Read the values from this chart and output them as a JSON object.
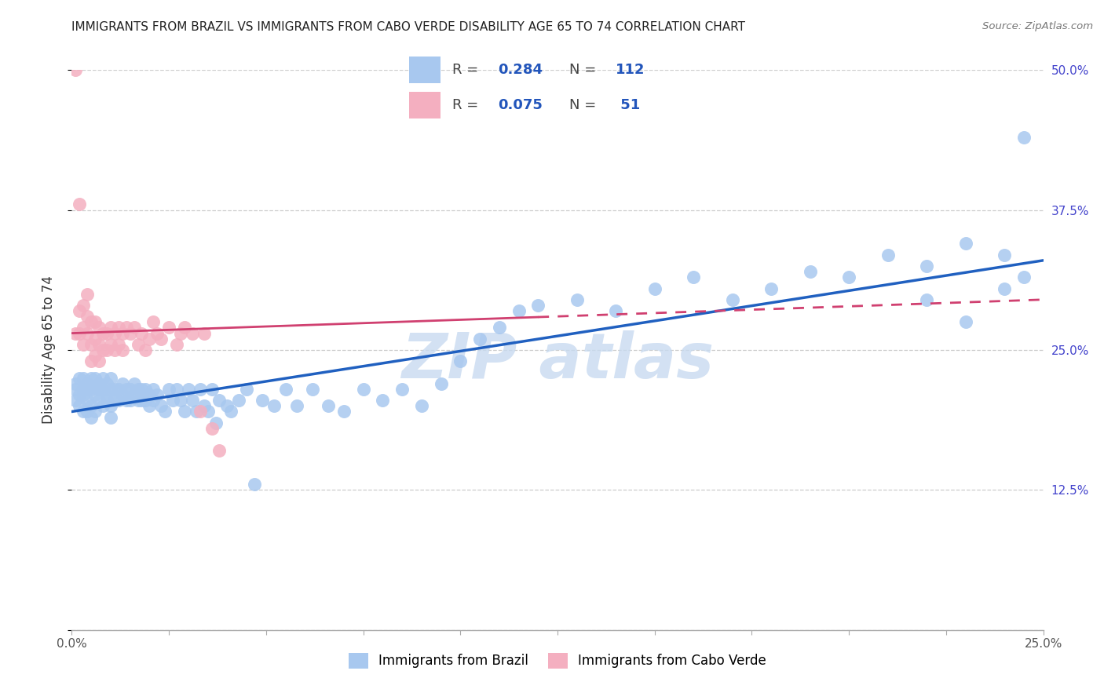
{
  "title": "IMMIGRANTS FROM BRAZIL VS IMMIGRANTS FROM CABO VERDE DISABILITY AGE 65 TO 74 CORRELATION CHART",
  "source": "Source: ZipAtlas.com",
  "ylabel": "Disability Age 65 to 74",
  "xlim": [
    0.0,
    0.25
  ],
  "ylim": [
    0.0,
    0.5
  ],
  "xticks": [
    0.0,
    0.025,
    0.05,
    0.075,
    0.1,
    0.125,
    0.15,
    0.175,
    0.2,
    0.225,
    0.25
  ],
  "xtick_labels": [
    "0.0%",
    "",
    "",
    "",
    "",
    "",
    "",
    "",
    "",
    "",
    "25.0%"
  ],
  "yticks": [
    0.0,
    0.125,
    0.25,
    0.375,
    0.5
  ],
  "ytick_labels": [
    "",
    "12.5%",
    "25.0%",
    "37.5%",
    "50.0%"
  ],
  "legend_labels": [
    "Immigrants from Brazil",
    "Immigrants from Cabo Verde"
  ],
  "R_brazil": 0.284,
  "N_brazil": 112,
  "R_caboverde": 0.075,
  "N_caboverde": 51,
  "blue_dot_color": "#a8c8ef",
  "pink_dot_color": "#f4afc0",
  "blue_line_color": "#2060c0",
  "pink_line_color": "#d04070",
  "tick_color": "#4444cc",
  "grid_color": "#cccccc",
  "brazil_trendline_x0": 0.0,
  "brazil_trendline_y0": 0.195,
  "brazil_trendline_x1": 0.25,
  "brazil_trendline_y1": 0.33,
  "cv_trendline_x0": 0.0,
  "cv_trendline_y0": 0.265,
  "cv_trendline_x1": 0.25,
  "cv_trendline_y1": 0.295,
  "brazil_x": [
    0.001,
    0.001,
    0.001,
    0.002,
    0.002,
    0.002,
    0.003,
    0.003,
    0.003,
    0.003,
    0.004,
    0.004,
    0.004,
    0.004,
    0.005,
    0.005,
    0.005,
    0.005,
    0.006,
    0.006,
    0.006,
    0.007,
    0.007,
    0.007,
    0.008,
    0.008,
    0.008,
    0.009,
    0.009,
    0.009,
    0.01,
    0.01,
    0.01,
    0.01,
    0.011,
    0.011,
    0.012,
    0.012,
    0.013,
    0.013,
    0.014,
    0.014,
    0.015,
    0.015,
    0.016,
    0.016,
    0.017,
    0.017,
    0.018,
    0.018,
    0.019,
    0.019,
    0.02,
    0.02,
    0.021,
    0.021,
    0.022,
    0.023,
    0.024,
    0.025,
    0.026,
    0.027,
    0.028,
    0.029,
    0.03,
    0.031,
    0.032,
    0.033,
    0.034,
    0.035,
    0.036,
    0.037,
    0.038,
    0.04,
    0.041,
    0.043,
    0.045,
    0.047,
    0.049,
    0.052,
    0.055,
    0.058,
    0.062,
    0.066,
    0.07,
    0.075,
    0.08,
    0.085,
    0.09,
    0.095,
    0.1,
    0.105,
    0.11,
    0.115,
    0.12,
    0.13,
    0.14,
    0.15,
    0.16,
    0.17,
    0.18,
    0.19,
    0.2,
    0.21,
    0.22,
    0.23,
    0.24,
    0.245,
    0.22,
    0.23,
    0.24,
    0.245
  ],
  "brazil_y": [
    0.215,
    0.22,
    0.205,
    0.21,
    0.225,
    0.2,
    0.215,
    0.225,
    0.21,
    0.195,
    0.215,
    0.22,
    0.205,
    0.195,
    0.215,
    0.225,
    0.2,
    0.19,
    0.21,
    0.225,
    0.195,
    0.215,
    0.22,
    0.205,
    0.215,
    0.225,
    0.2,
    0.21,
    0.22,
    0.205,
    0.215,
    0.225,
    0.2,
    0.19,
    0.215,
    0.205,
    0.215,
    0.205,
    0.21,
    0.22,
    0.205,
    0.215,
    0.205,
    0.215,
    0.21,
    0.22,
    0.205,
    0.215,
    0.205,
    0.215,
    0.205,
    0.215,
    0.21,
    0.2,
    0.215,
    0.205,
    0.21,
    0.2,
    0.195,
    0.215,
    0.205,
    0.215,
    0.205,
    0.195,
    0.215,
    0.205,
    0.195,
    0.215,
    0.2,
    0.195,
    0.215,
    0.185,
    0.205,
    0.2,
    0.195,
    0.205,
    0.215,
    0.13,
    0.205,
    0.2,
    0.215,
    0.2,
    0.215,
    0.2,
    0.195,
    0.215,
    0.205,
    0.215,
    0.2,
    0.22,
    0.24,
    0.26,
    0.27,
    0.285,
    0.29,
    0.295,
    0.285,
    0.305,
    0.315,
    0.295,
    0.305,
    0.32,
    0.315,
    0.335,
    0.325,
    0.345,
    0.335,
    0.44,
    0.295,
    0.275,
    0.305,
    0.315
  ],
  "caboverde_x": [
    0.001,
    0.001,
    0.002,
    0.002,
    0.002,
    0.003,
    0.003,
    0.003,
    0.004,
    0.004,
    0.004,
    0.005,
    0.005,
    0.005,
    0.006,
    0.006,
    0.006,
    0.007,
    0.007,
    0.007,
    0.008,
    0.008,
    0.009,
    0.009,
    0.01,
    0.01,
    0.011,
    0.011,
    0.012,
    0.012,
    0.013,
    0.013,
    0.014,
    0.015,
    0.016,
    0.017,
    0.018,
    0.019,
    0.02,
    0.021,
    0.022,
    0.023,
    0.025,
    0.027,
    0.028,
    0.029,
    0.031,
    0.033,
    0.034,
    0.036,
    0.038
  ],
  "caboverde_y": [
    0.5,
    0.265,
    0.38,
    0.285,
    0.265,
    0.29,
    0.27,
    0.255,
    0.3,
    0.28,
    0.265,
    0.275,
    0.255,
    0.24,
    0.275,
    0.26,
    0.245,
    0.27,
    0.255,
    0.24,
    0.265,
    0.25,
    0.265,
    0.25,
    0.27,
    0.255,
    0.265,
    0.25,
    0.27,
    0.255,
    0.265,
    0.25,
    0.27,
    0.265,
    0.27,
    0.255,
    0.265,
    0.25,
    0.26,
    0.275,
    0.265,
    0.26,
    0.27,
    0.255,
    0.265,
    0.27,
    0.265,
    0.195,
    0.265,
    0.18,
    0.16
  ]
}
